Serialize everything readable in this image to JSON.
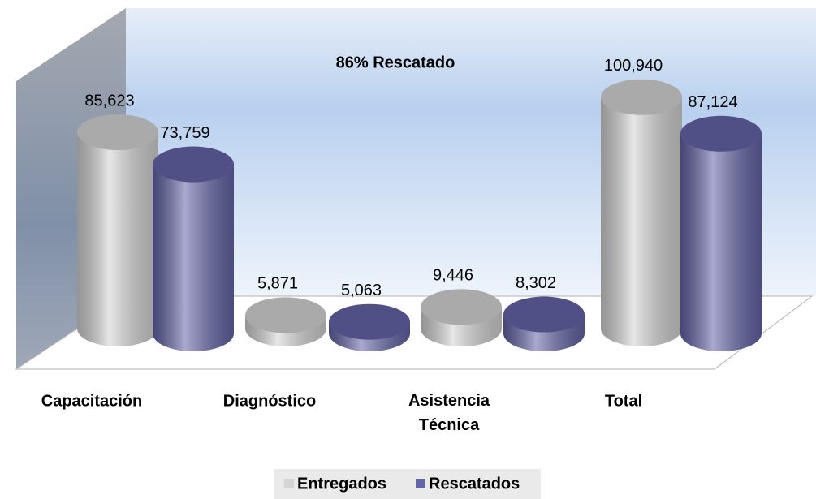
{
  "chart_data": {
    "type": "bar3d",
    "annotation": "86% Rescatado",
    "categories": [
      "Capacitación",
      "Diagnóstico",
      "Asistencia Técnica",
      "Total"
    ],
    "series": [
      {
        "name": "Entregados",
        "color": "#d4d4d4",
        "values": [
          85623,
          5871,
          9446,
          100940
        ],
        "value_labels": [
          "85,623",
          "5,871",
          "9,446",
          "100,940"
        ]
      },
      {
        "name": "Rescatados",
        "color": "#6464a8",
        "values": [
          73759,
          5063,
          8302,
          87124
        ],
        "value_labels": [
          "73,759",
          "5,063",
          "8,302",
          "87,124"
        ]
      }
    ],
    "legend": "bottom"
  }
}
